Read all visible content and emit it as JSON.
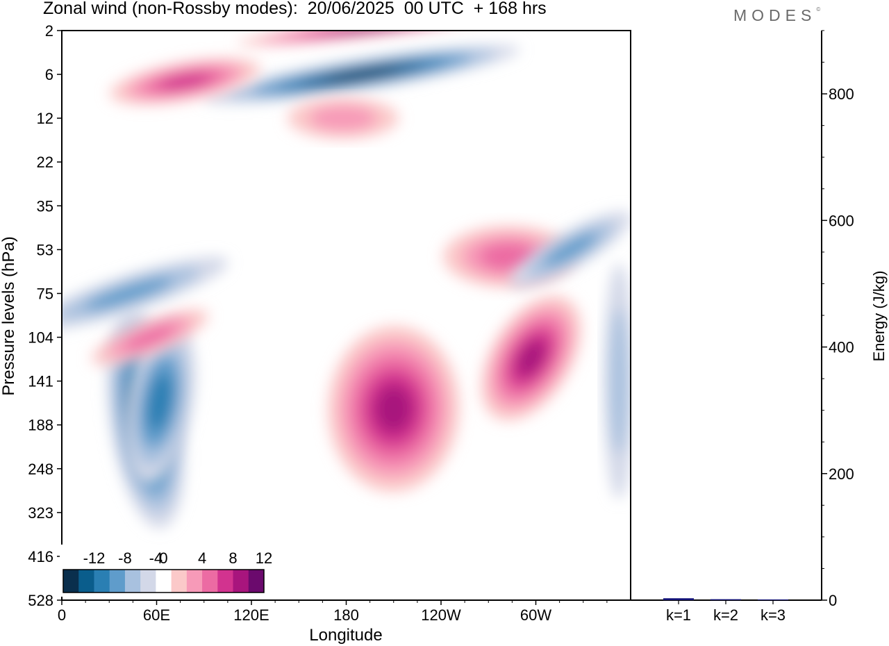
{
  "header": {
    "title": "Zonal wind (non-Rossby modes):  20/06/2025  00 UTC  + 168 hrs",
    "logo": "MODES",
    "logo_mark": "©"
  },
  "colors": {
    "neg_scale": [
      "#0a2f4d",
      "#0a5d8c",
      "#2a7fb3",
      "#5f9ccb",
      "#a8c1df",
      "#d3d8e8"
    ],
    "pos_scale": [
      "#fbc9c9",
      "#f79ab8",
      "#ec6ba3",
      "#d2338f",
      "#a8157d",
      "#6b0a6d"
    ],
    "axes": "#000000",
    "bars": "#14147a"
  },
  "chart_data": [
    {
      "type": "heatmap",
      "title": "Zonal wind (non-Rossby modes):  20/06/2025  00 UTC  + 168 hrs",
      "xlabel": "Longitude",
      "ylabel": "Pressure levels (hPa)",
      "x_ticks": [
        "0",
        "60E",
        "120E",
        "180",
        "120W",
        "60W"
      ],
      "x_tick_values": [
        0,
        60,
        120,
        180,
        240,
        300
      ],
      "xlim": [
        0,
        360
      ],
      "y_ticks": [
        "2",
        "6",
        "12",
        "22",
        "35",
        "53",
        "75",
        "104",
        "141",
        "188",
        "248",
        "323",
        "416",
        "528"
      ],
      "colorbar": {
        "tick_labels": [
          "-12",
          "-8",
          "-4",
          "0",
          "4",
          "8",
          "12"
        ],
        "levels": [
          -14,
          -12,
          -10,
          -8,
          -6,
          -4,
          -2,
          2,
          4,
          6,
          8,
          10,
          12,
          14
        ]
      },
      "features": [
        {
          "sign": -1,
          "peak": -14,
          "lon": 40,
          "level": "188",
          "desc": "strong easterly core"
        },
        {
          "sign": -1,
          "peak": -8,
          "lon": 62,
          "level": "141"
        },
        {
          "sign": -1,
          "peak": -14,
          "lon": 190,
          "level": "6",
          "desc": "easterly band near top"
        },
        {
          "sign": 1,
          "peak": 12,
          "lon": 185,
          "level": "2"
        },
        {
          "sign": 1,
          "peak": 8,
          "lon": 100,
          "level": "6"
        },
        {
          "sign": 1,
          "peak": 10,
          "lon": 210,
          "level": "141"
        },
        {
          "sign": 1,
          "peak": 10,
          "lon": 297,
          "level": "104"
        },
        {
          "sign": 1,
          "peak": 6,
          "lon": 283,
          "level": "53"
        },
        {
          "sign": 1,
          "peak": 6,
          "lon": 36,
          "level": "104"
        },
        {
          "sign": -1,
          "peak": -6,
          "lon": 16,
          "level": "75"
        },
        {
          "sign": -1,
          "peak": -6,
          "lon": 322,
          "level": "53"
        },
        {
          "sign": -1,
          "peak": -4,
          "lon": 357,
          "level": "141"
        },
        {
          "sign": 1,
          "peak": 4,
          "lon": 178,
          "level": "12"
        }
      ]
    },
    {
      "type": "bar",
      "ylabel": "Energy (J/kg)",
      "categories": [
        "k=1",
        "k=2",
        "k=3"
      ],
      "values": [
        3,
        1.5,
        1
      ],
      "ylim": [
        0,
        900
      ],
      "y_ticks": [
        "0",
        "200",
        "400",
        "600",
        "800"
      ],
      "y_tick_values": [
        0,
        200,
        400,
        600,
        800
      ]
    }
  ]
}
